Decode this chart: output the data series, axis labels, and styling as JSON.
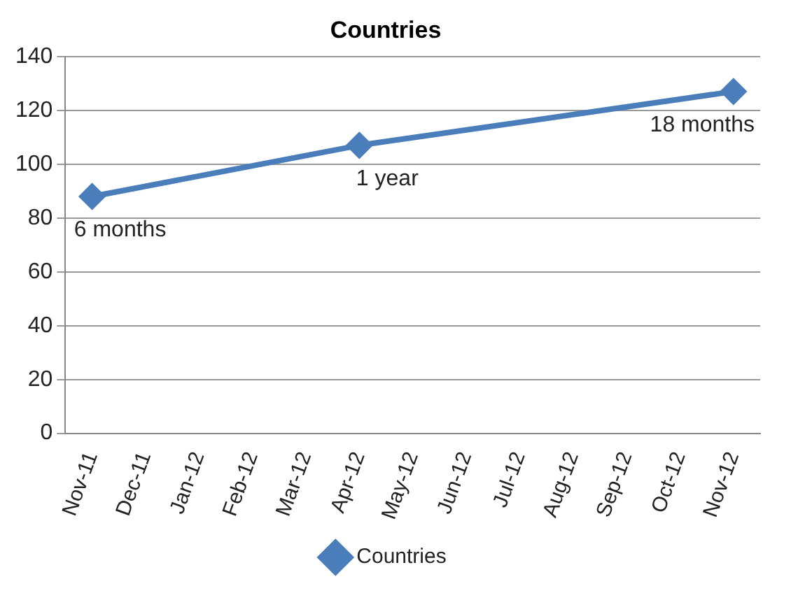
{
  "chart_data": {
    "type": "line",
    "title": "Countries",
    "categories": [
      "Nov-11",
      "Dec-11",
      "Jan-12",
      "Feb-12",
      "Mar-12",
      "Apr-12",
      "May-12",
      "Jun-12",
      "Jul-12",
      "Aug-12",
      "Sep-12",
      "Oct-12",
      "Nov-12"
    ],
    "series": [
      {
        "name": "Countries",
        "color": "#4a7ebb",
        "values": [
          88,
          null,
          null,
          null,
          null,
          107,
          null,
          null,
          null,
          null,
          null,
          null,
          127
        ]
      }
    ],
    "ylim": [
      0,
      140
    ],
    "yticks": [
      0,
      20,
      40,
      60,
      80,
      100,
      120,
      140
    ],
    "grid": "y",
    "legend": "bottom",
    "marker": "diamond",
    "line_style": "solid",
    "annotations": [
      {
        "text": "6 months",
        "x": "Nov-11",
        "y": 88
      },
      {
        "text": "1 year",
        "x": "Apr-12",
        "y": 107
      },
      {
        "text": "18 months",
        "x": "Nov-12",
        "y": 127
      }
    ]
  }
}
